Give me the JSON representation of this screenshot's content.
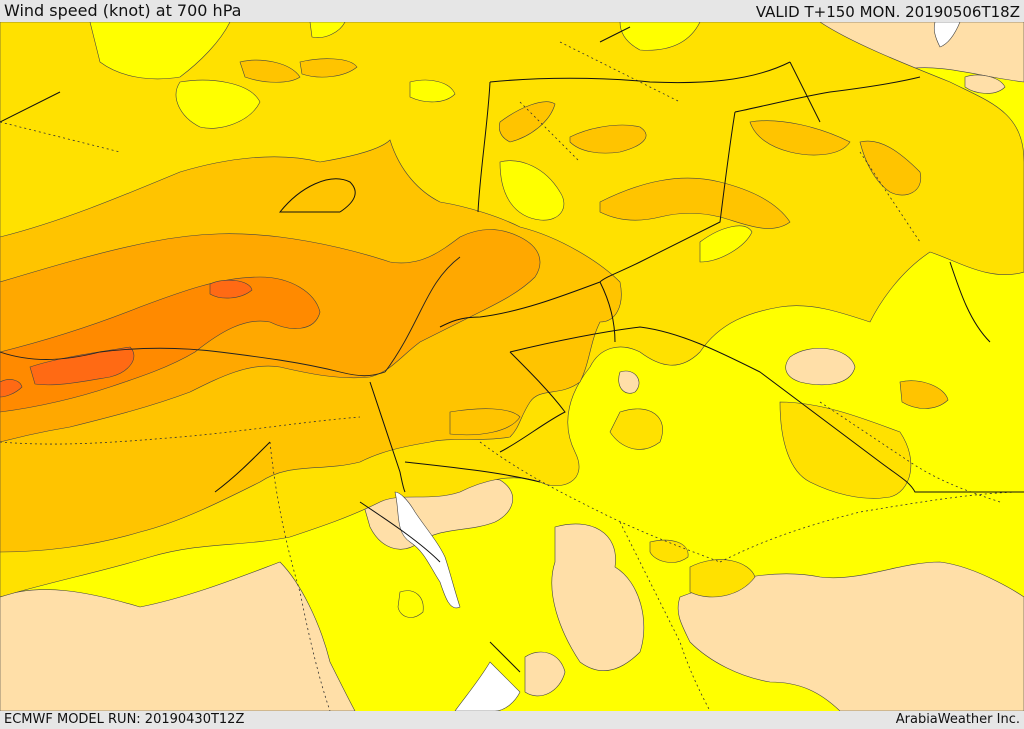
{
  "header": {
    "title": "Wind speed (knot) at 700 hPa",
    "valid": "VALID T+150 MON. 20190506T18Z"
  },
  "footer": {
    "model_run": "ECMWF MODEL RUN: 20190430T12Z",
    "credit": "ArabiaWeather Inc."
  },
  "colors": {
    "shade_lowest": "#ffdfa8",
    "shade_2": "#ffff00",
    "shade_3": "#ffe100",
    "shade_4": "#ffc400",
    "shade_5": "#ffa800",
    "shade_6": "#ff8a00",
    "shade_highest": "#ff6a14",
    "land_water_blank": "#ffffff"
  }
}
